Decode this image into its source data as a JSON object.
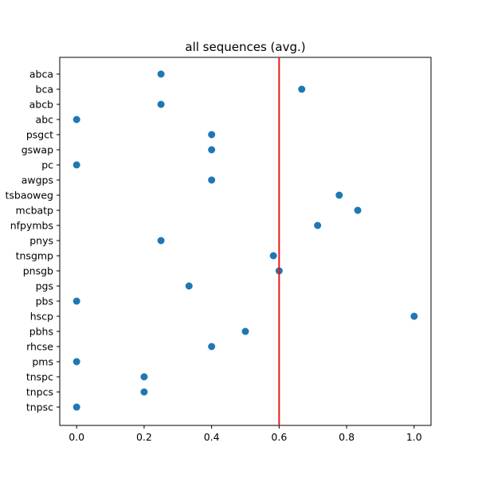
{
  "chart_data": {
    "type": "scatter",
    "title": "all sequences (avg.)",
    "xlabel": "",
    "ylabel": "",
    "xlim": [
      -0.05,
      1.05
    ],
    "x_ticks": [
      0.0,
      0.2,
      0.4,
      0.6,
      0.8,
      1.0
    ],
    "x_tick_labels": [
      "0.0",
      "0.2",
      "0.4",
      "0.6",
      "0.8",
      "1.0"
    ],
    "categories": [
      "abca",
      "bca",
      "abcb",
      "abc",
      "psgct",
      "gswap",
      "pc",
      "awgps",
      "tsbaoweg",
      "mcbatp",
      "nfpymbs",
      "pnys",
      "tnsgmp",
      "pnsgb",
      "pgs",
      "pbs",
      "hscp",
      "pbhs",
      "rhcse",
      "pms",
      "tnspc",
      "tnpcs",
      "tnpsc"
    ],
    "values": [
      0.25,
      0.667,
      0.25,
      0.0,
      0.4,
      0.4,
      0.0,
      0.4,
      0.778,
      0.833,
      0.714,
      0.25,
      0.583,
      0.6,
      0.333,
      0.0,
      1.0,
      0.5,
      0.4,
      0.0,
      0.2,
      0.2,
      0.0
    ],
    "point_color": "#1f77b4",
    "reference_line": {
      "orientation": "vertical",
      "x": 0.6,
      "color": "#e31a1c"
    },
    "grid": false,
    "legend": "none"
  }
}
